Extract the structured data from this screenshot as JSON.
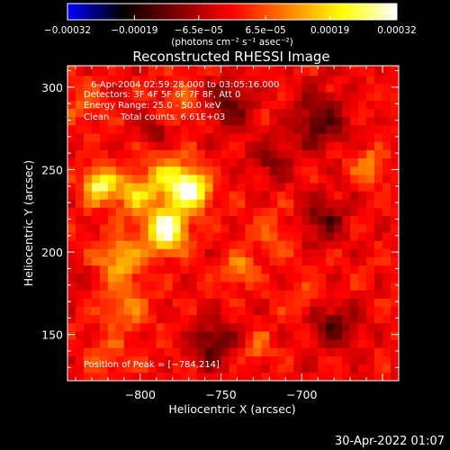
{
  "chart_data": {
    "type": "heatmap",
    "title": "Reconstructed RHESSI Image",
    "xlabel": "Heliocentric X (arcsec)",
    "ylabel": "Heliocentric Y (arcsec)",
    "xlim": [
      -845,
      -640
    ],
    "ylim": [
      122,
      313
    ],
    "x_ticks": [
      -800,
      -750,
      -700
    ],
    "y_ticks": [
      150,
      200,
      250,
      300
    ],
    "x_tick_labels": [
      "−800",
      "−750",
      "−700"
    ],
    "y_tick_labels": [
      "150",
      "200",
      "250",
      "300"
    ],
    "colorbar": {
      "range": [
        -0.00032,
        0.00032
      ],
      "tick_values": [
        -0.00032,
        -0.00019,
        -6.5e-05,
        6.5e-05,
        0.00019,
        0.00032
      ],
      "tick_labels": [
        "−0.00032",
        "−0.00019",
        "−6.5e−05",
        "6.5e−05",
        "0.00019",
        "0.00032"
      ],
      "units_text": "(photons cm⁻² s⁻¹ asec⁻²)",
      "colormap": [
        "#0000ff",
        "#000000",
        "#800000",
        "#ff0000",
        "#ff8000",
        "#ffff00",
        "#ffffff"
      ]
    },
    "annotations": {
      "time_range": "6-Apr-2004 02:59:28.000 to 03:05:16.000",
      "detectors": "Detectors: 3F 4F 5F 6F 7F 8F, Att 0",
      "energy_range": "Energy Range: 25.0 - 50.0 keV",
      "clean_counts": "Clean    Total counts: 6.61E+03",
      "peak": "Position of Peak = [−784,214]"
    },
    "peak_position": [
      -784,
      214
    ],
    "sources": [
      {
        "x": -784,
        "y": 214,
        "peak": 0.00032,
        "sigma": 9
      },
      {
        "x": -768,
        "y": 238,
        "peak": 0.00028,
        "sigma": 8
      },
      {
        "x": -825,
        "y": 241,
        "peak": 0.00026,
        "sigma": 7
      },
      {
        "x": -783,
        "y": 244,
        "peak": 0.00018,
        "sigma": 10
      },
      {
        "x": -805,
        "y": 235,
        "peak": 0.00016,
        "sigma": 8
      },
      {
        "x": -812,
        "y": 196,
        "peak": 0.00015,
        "sigma": 10
      },
      {
        "x": -808,
        "y": 168,
        "peak": 0.00011,
        "sigma": 9
      },
      {
        "x": -738,
        "y": 190,
        "peak": 0.00011,
        "sigma": 7
      },
      {
        "x": -658,
        "y": 252,
        "peak": 0.00012,
        "sigma": 7
      },
      {
        "x": -727,
        "y": 143,
        "peak": 9e-05,
        "sigma": 6
      },
      {
        "x": -775,
        "y": 290,
        "peak": 7e-05,
        "sigma": 9
      },
      {
        "x": -835,
        "y": 290,
        "peak": 8e-05,
        "sigma": 8
      },
      {
        "x": -718,
        "y": 212,
        "peak": 7e-05,
        "sigma": 8
      },
      {
        "x": -820,
        "y": 140,
        "peak": 7e-05,
        "sigma": 8
      },
      {
        "x": -700,
        "y": 170,
        "peak": 5e-05,
        "sigma": 7
      },
      {
        "x": -745,
        "y": 290,
        "peak": -0.00012,
        "sigma": 10
      },
      {
        "x": -690,
        "y": 280,
        "peak": -0.00014,
        "sigma": 12
      },
      {
        "x": -685,
        "y": 220,
        "peak": -0.00012,
        "sigma": 10
      },
      {
        "x": -755,
        "y": 145,
        "peak": -0.00014,
        "sigma": 10
      },
      {
        "x": -680,
        "y": 155,
        "peak": -0.00013,
        "sigma": 10
      },
      {
        "x": -790,
        "y": 275,
        "peak": -9e-05,
        "sigma": 7
      },
      {
        "x": -720,
        "y": 255,
        "peak": -0.0001,
        "sigma": 9
      },
      {
        "x": -840,
        "y": 185,
        "peak": -5e-05,
        "sigma": 6
      }
    ],
    "grid": false
  },
  "footer": {
    "date": "30-Apr-2022 01:07"
  }
}
